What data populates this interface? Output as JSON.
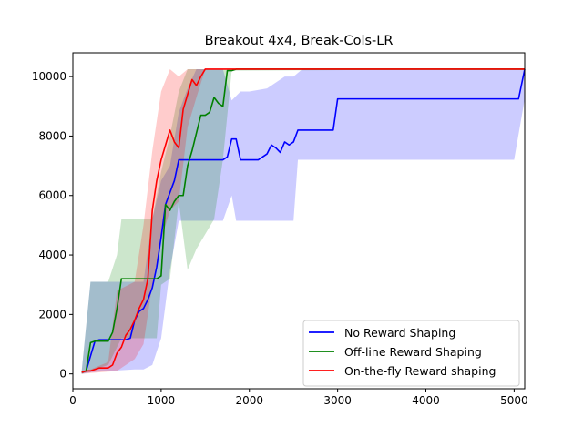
{
  "chart_data": {
    "type": "line",
    "title": "Breakout 4x4, Break-Cols-LR",
    "xlabel": "",
    "ylabel": "",
    "xlim": [
      0,
      5120
    ],
    "ylim": [
      -500,
      10800
    ],
    "xticks": [
      0,
      1000,
      2000,
      3000,
      4000,
      5000
    ],
    "yticks": [
      0,
      2000,
      4000,
      6000,
      8000,
      10000
    ],
    "grid": false,
    "legend_position": "lower-right",
    "series": [
      {
        "name": "No Reward Shaping",
        "color": "#0000ff",
        "band_color": "#0000ff",
        "band_opacity": 0.2,
        "points": [
          [
            100,
            50
          ],
          [
            150,
            100
          ],
          [
            200,
            600
          ],
          [
            250,
            1100
          ],
          [
            300,
            1150
          ],
          [
            500,
            1150
          ],
          [
            600,
            1150
          ],
          [
            650,
            1200
          ],
          [
            700,
            1800
          ],
          [
            750,
            2100
          ],
          [
            800,
            2200
          ],
          [
            850,
            2500
          ],
          [
            900,
            2900
          ],
          [
            950,
            3600
          ],
          [
            1000,
            4600
          ],
          [
            1050,
            5700
          ],
          [
            1100,
            6100
          ],
          [
            1150,
            6500
          ],
          [
            1200,
            7200
          ],
          [
            1500,
            7200
          ],
          [
            1700,
            7200
          ],
          [
            1750,
            7300
          ],
          [
            1800,
            7900
          ],
          [
            1850,
            7900
          ],
          [
            1900,
            7200
          ],
          [
            2100,
            7200
          ],
          [
            2150,
            7300
          ],
          [
            2200,
            7400
          ],
          [
            2250,
            7700
          ],
          [
            2300,
            7600
          ],
          [
            2350,
            7450
          ],
          [
            2400,
            7800
          ],
          [
            2450,
            7700
          ],
          [
            2500,
            7800
          ],
          [
            2550,
            8200
          ],
          [
            2950,
            8200
          ],
          [
            3000,
            9250
          ],
          [
            5000,
            9250
          ],
          [
            5050,
            9250
          ],
          [
            5120,
            10250
          ]
        ],
        "upper": [
          [
            100,
            100
          ],
          [
            200,
            3100
          ],
          [
            300,
            3100
          ],
          [
            700,
            3100
          ],
          [
            800,
            3100
          ],
          [
            900,
            5200
          ],
          [
            1000,
            6500
          ],
          [
            1100,
            7000
          ],
          [
            1200,
            8800
          ],
          [
            1300,
            9600
          ],
          [
            1400,
            10250
          ],
          [
            1700,
            10250
          ],
          [
            1800,
            9200
          ],
          [
            1900,
            9500
          ],
          [
            2000,
            9500
          ],
          [
            2200,
            9600
          ],
          [
            2300,
            9800
          ],
          [
            2400,
            10000
          ],
          [
            2500,
            10000
          ],
          [
            2600,
            10250
          ],
          [
            5120,
            10250
          ]
        ],
        "lower": [
          [
            100,
            0
          ],
          [
            200,
            50
          ],
          [
            400,
            100
          ],
          [
            700,
            150
          ],
          [
            800,
            150
          ],
          [
            900,
            300
          ],
          [
            1000,
            1200
          ],
          [
            1100,
            3500
          ],
          [
            1200,
            5150
          ],
          [
            1500,
            5150
          ],
          [
            1700,
            5150
          ],
          [
            1800,
            6000
          ],
          [
            1850,
            5150
          ],
          [
            2500,
            5150
          ],
          [
            2550,
            7200
          ],
          [
            5000,
            7200
          ],
          [
            5120,
            9250
          ]
        ]
      },
      {
        "name": "Off-line Reward Shaping",
        "color": "#008000",
        "band_color": "#008000",
        "band_opacity": 0.2,
        "points": [
          [
            100,
            50
          ],
          [
            150,
            100
          ],
          [
            200,
            1050
          ],
          [
            250,
            1100
          ],
          [
            400,
            1100
          ],
          [
            450,
            1400
          ],
          [
            500,
            2200
          ],
          [
            550,
            3200
          ],
          [
            600,
            3200
          ],
          [
            800,
            3200
          ],
          [
            850,
            3200
          ],
          [
            900,
            3200
          ],
          [
            950,
            3200
          ],
          [
            1000,
            3300
          ],
          [
            1050,
            5700
          ],
          [
            1100,
            5500
          ],
          [
            1150,
            5800
          ],
          [
            1200,
            6000
          ],
          [
            1250,
            6000
          ],
          [
            1300,
            7000
          ],
          [
            1350,
            7500
          ],
          [
            1400,
            8100
          ],
          [
            1450,
            8700
          ],
          [
            1500,
            8700
          ],
          [
            1550,
            8800
          ],
          [
            1600,
            9300
          ],
          [
            1650,
            9100
          ],
          [
            1700,
            9000
          ],
          [
            1750,
            10200
          ],
          [
            1800,
            10200
          ],
          [
            1850,
            10250
          ],
          [
            5120,
            10250
          ]
        ],
        "upper": [
          [
            100,
            100
          ],
          [
            200,
            3100
          ],
          [
            400,
            3100
          ],
          [
            500,
            4000
          ],
          [
            550,
            5200
          ],
          [
            700,
            5200
          ],
          [
            900,
            5200
          ],
          [
            1000,
            6800
          ],
          [
            1100,
            8000
          ],
          [
            1200,
            9500
          ],
          [
            1300,
            10250
          ],
          [
            5120,
            10250
          ]
        ],
        "lower": [
          [
            100,
            0
          ],
          [
            200,
            100
          ],
          [
            400,
            300
          ],
          [
            550,
            1200
          ],
          [
            800,
            1200
          ],
          [
            950,
            1200
          ],
          [
            1000,
            3000
          ],
          [
            1100,
            3200
          ],
          [
            1200,
            5800
          ],
          [
            1300,
            3500
          ],
          [
            1400,
            4200
          ],
          [
            1600,
            5200
          ],
          [
            1700,
            7200
          ],
          [
            1800,
            10200
          ],
          [
            5120,
            10250
          ]
        ]
      },
      {
        "name": "On-the-fly Reward shaping",
        "color": "#ff0000",
        "band_color": "#ff0000",
        "band_opacity": 0.2,
        "points": [
          [
            100,
            50
          ],
          [
            150,
            100
          ],
          [
            200,
            100
          ],
          [
            250,
            150
          ],
          [
            300,
            200
          ],
          [
            400,
            200
          ],
          [
            450,
            300
          ],
          [
            500,
            700
          ],
          [
            550,
            900
          ],
          [
            600,
            1300
          ],
          [
            650,
            1500
          ],
          [
            700,
            1800
          ],
          [
            750,
            2200
          ],
          [
            800,
            2500
          ],
          [
            850,
            3200
          ],
          [
            900,
            5500
          ],
          [
            950,
            6500
          ],
          [
            1000,
            7200
          ],
          [
            1050,
            7700
          ],
          [
            1100,
            8200
          ],
          [
            1150,
            7800
          ],
          [
            1200,
            7600
          ],
          [
            1250,
            8900
          ],
          [
            1300,
            9400
          ],
          [
            1350,
            9900
          ],
          [
            1400,
            9700
          ],
          [
            1450,
            10000
          ],
          [
            1500,
            10250
          ],
          [
            5120,
            10250
          ]
        ],
        "upper": [
          [
            100,
            100
          ],
          [
            200,
            150
          ],
          [
            400,
            400
          ],
          [
            500,
            2800
          ],
          [
            700,
            3100
          ],
          [
            800,
            5000
          ],
          [
            900,
            7500
          ],
          [
            1000,
            9500
          ],
          [
            1100,
            10250
          ],
          [
            1200,
            10000
          ],
          [
            1300,
            10250
          ],
          [
            5120,
            10250
          ]
        ],
        "lower": [
          [
            100,
            0
          ],
          [
            300,
            50
          ],
          [
            500,
            100
          ],
          [
            700,
            500
          ],
          [
            800,
            1000
          ],
          [
            900,
            3000
          ],
          [
            1000,
            4500
          ],
          [
            1100,
            5500
          ],
          [
            1200,
            5800
          ],
          [
            1300,
            8300
          ],
          [
            1400,
            9300
          ],
          [
            1500,
            10250
          ],
          [
            5120,
            10250
          ]
        ]
      }
    ]
  }
}
